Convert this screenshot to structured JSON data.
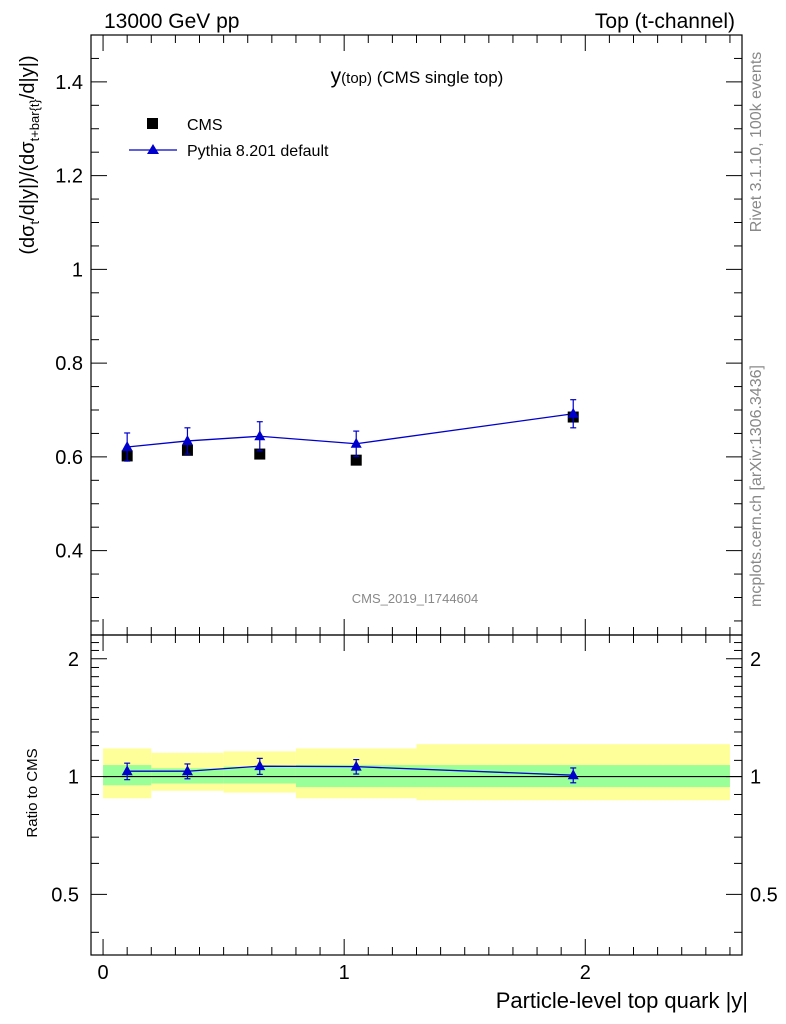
{
  "header": {
    "left": "13000 GeV pp",
    "right": "Top (t-channel)"
  },
  "side_labels": {
    "rivet": "Rivet 3.1.10,  100k events",
    "source": "mcplots.cern.ch [arXiv:1306.3436]"
  },
  "watermark": "CMS_2019_I1744604",
  "plot_title": {
    "main": "y",
    "sub": "(top)",
    "rest": " (CMS single top)"
  },
  "legend": {
    "data_label": "CMS",
    "mc_label": "Pythia 8.201 default"
  },
  "colors": {
    "data": "#000000",
    "mc": "#0000cc",
    "band_inner": "#99ff99",
    "band_outer": "#ffff99"
  },
  "chart_data": [
    {
      "type": "scatter",
      "panel": "main",
      "ylabel": "(dσ_t/d|y|)/(dσ_t+bar{t}/d|y|)",
      "ylim": [
        0.22,
        1.5
      ],
      "yticks": [
        "0.4",
        "0.6",
        "0.8",
        "1",
        "1.2",
        "1.4"
      ],
      "series": [
        {
          "name": "CMS",
          "marker": "square",
          "x": [
            0.1,
            0.35,
            0.65,
            1.05,
            1.95
          ],
          "y": [
            0.602,
            0.614,
            0.606,
            0.593,
            0.685
          ],
          "yerr": [
            0.012,
            0.01,
            0.01,
            0.01,
            0.012
          ]
        },
        {
          "name": "Pythia 8.201 default",
          "marker": "triangle",
          "x": [
            0.1,
            0.35,
            0.65,
            1.05,
            1.95
          ],
          "y": [
            0.621,
            0.634,
            0.644,
            0.628,
            0.692
          ],
          "yerr": [
            0.03,
            0.028,
            0.031,
            0.027,
            0.03
          ]
        }
      ]
    },
    {
      "type": "line",
      "panel": "ratio",
      "ylabel": "Ratio to CMS",
      "xlabel": "Particle-level top quark |y|",
      "xlim": [
        -0.05,
        2.65
      ],
      "ylim": [
        0.35,
        2.3
      ],
      "yticks": [
        "0.5",
        "1",
        "2"
      ],
      "xticks": [
        "0",
        "1",
        "2"
      ],
      "bands": {
        "edges": [
          0.0,
          0.2,
          0.5,
          0.8,
          1.3,
          2.6
        ],
        "inner": [
          [
            0.95,
            1.07
          ],
          [
            0.96,
            1.05
          ],
          [
            0.96,
            1.06
          ],
          [
            0.94,
            1.07
          ],
          [
            0.94,
            1.07
          ]
        ],
        "outer": [
          [
            0.88,
            1.18
          ],
          [
            0.92,
            1.15
          ],
          [
            0.91,
            1.16
          ],
          [
            0.88,
            1.18
          ],
          [
            0.87,
            1.21
          ]
        ]
      },
      "series": [
        {
          "name": "Pythia 8.201 default",
          "x": [
            0.1,
            0.35,
            0.65,
            1.05,
            1.95
          ],
          "y": [
            1.032,
            1.032,
            1.063,
            1.06,
            1.008
          ],
          "yerr": [
            0.05,
            0.045,
            0.05,
            0.045,
            0.044
          ]
        }
      ]
    }
  ]
}
